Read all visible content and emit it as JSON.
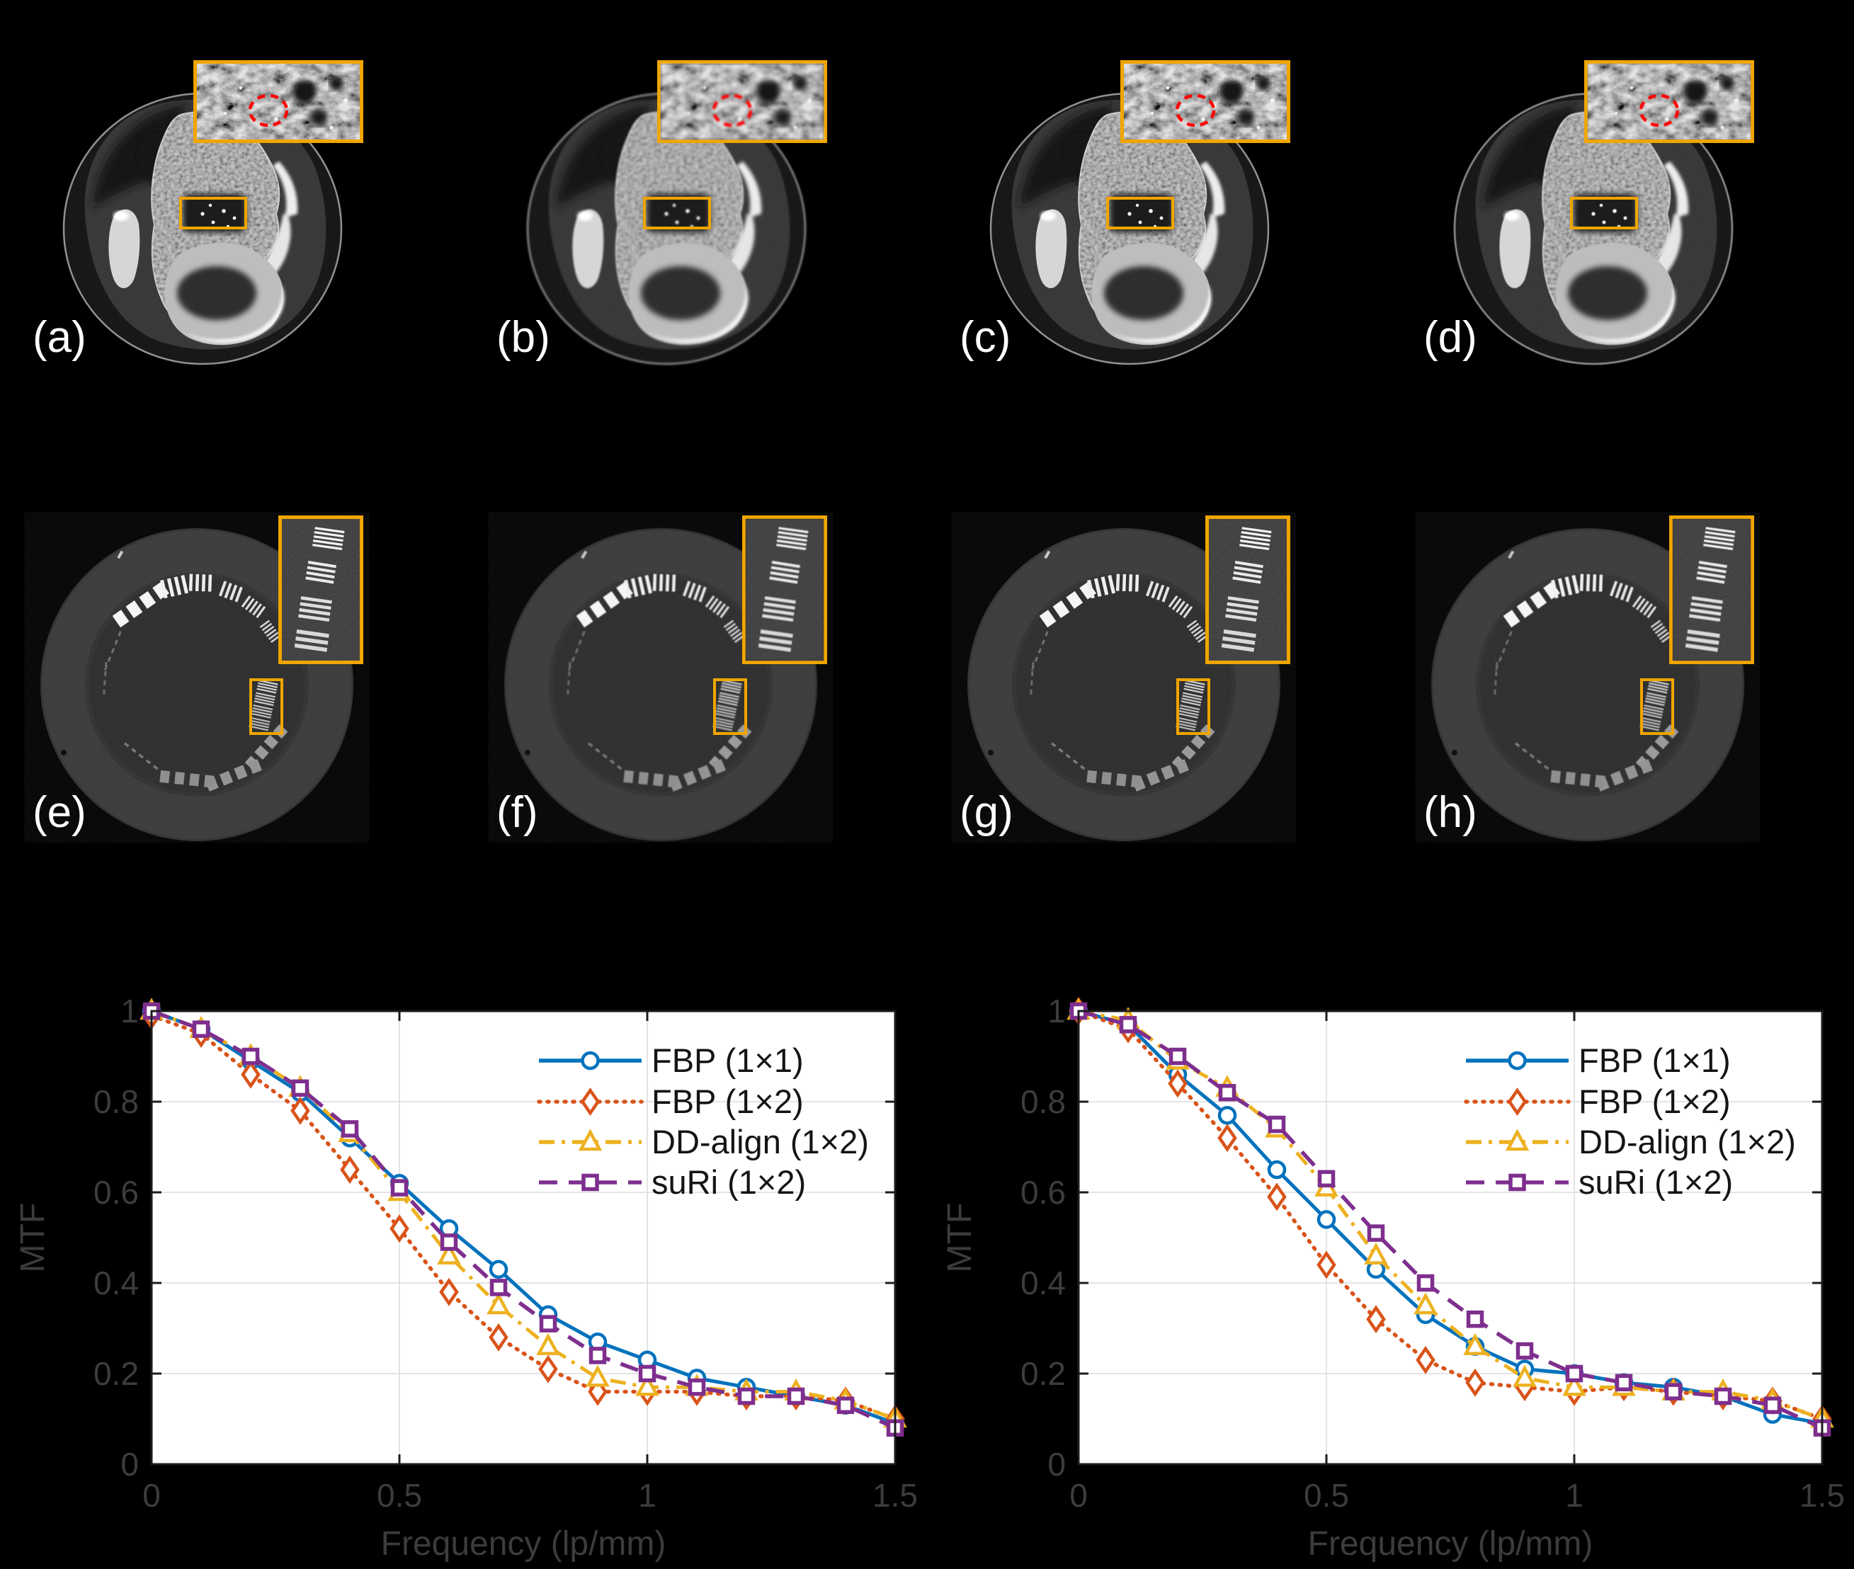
{
  "figure": {
    "background": "#000000",
    "accent_yellow": "#F0A500",
    "annotation_red": "#FF0000",
    "panel_label_color": "#FFFFFF"
  },
  "panels": {
    "row1": [
      {
        "label": "(a)"
      },
      {
        "label": "(b)"
      },
      {
        "label": "(c)"
      },
      {
        "label": "(d)"
      }
    ],
    "row2": [
      {
        "label": "(e)"
      },
      {
        "label": "(f)"
      },
      {
        "label": "(g)"
      },
      {
        "label": "(h)"
      }
    ]
  },
  "chart_data": [
    {
      "type": "line",
      "title": "",
      "xlabel": "Frequency (lp/mm)",
      "ylabel": "MTF",
      "xlim": [
        0,
        1.5
      ],
      "ylim": [
        0,
        1
      ],
      "xticks": [
        0,
        0.5,
        1,
        1.5
      ],
      "xtick_labels": [
        "0",
        "0.5",
        "1",
        "1.5"
      ],
      "yticks": [
        0,
        0.2,
        0.4,
        0.6,
        0.8,
        1
      ],
      "ytick_labels": [
        "0",
        "0.2",
        "0.4",
        "0.6",
        "0.8",
        "1"
      ],
      "grid": true,
      "legend_position": "top-right",
      "x": [
        0,
        0.1,
        0.2,
        0.3,
        0.4,
        0.5,
        0.6,
        0.7,
        0.8,
        0.9,
        1.0,
        1.1,
        1.2,
        1.3,
        1.4,
        1.5
      ],
      "series": [
        {
          "name": "FBP (1×1)",
          "color": "#0072BD",
          "line_style": "solid",
          "marker": "circle",
          "values": [
            1.0,
            0.96,
            0.89,
            0.82,
            0.72,
            0.62,
            0.52,
            0.43,
            0.33,
            0.27,
            0.23,
            0.19,
            0.17,
            0.15,
            0.13,
            0.09
          ]
        },
        {
          "name": "FBP (1×2)",
          "color": "#D95319",
          "line_style": "dotted",
          "marker": "diamond",
          "values": [
            0.99,
            0.95,
            0.86,
            0.78,
            0.65,
            0.52,
            0.38,
            0.28,
            0.21,
            0.16,
            0.16,
            0.16,
            0.15,
            0.15,
            0.14,
            0.1
          ]
        },
        {
          "name": "DD-align (1×2)",
          "color": "#EDB120",
          "line_style": "dashdot",
          "marker": "triangle",
          "values": [
            1.0,
            0.96,
            0.9,
            0.83,
            0.73,
            0.6,
            0.46,
            0.35,
            0.26,
            0.19,
            0.17,
            0.17,
            0.16,
            0.16,
            0.14,
            0.1
          ]
        },
        {
          "name": "suRi (1×2)",
          "color": "#7E2F8E",
          "line_style": "dashed",
          "marker": "square",
          "values": [
            1.0,
            0.96,
            0.9,
            0.83,
            0.74,
            0.61,
            0.49,
            0.39,
            0.31,
            0.24,
            0.2,
            0.17,
            0.15,
            0.15,
            0.13,
            0.08
          ]
        }
      ]
    },
    {
      "type": "line",
      "title": "",
      "xlabel": "Frequency (lp/mm)",
      "ylabel": "MTF",
      "xlim": [
        0,
        1.5
      ],
      "ylim": [
        0,
        1
      ],
      "xticks": [
        0,
        0.5,
        1,
        1.5
      ],
      "xtick_labels": [
        "0",
        "0.5",
        "1",
        "1.5"
      ],
      "yticks": [
        0,
        0.2,
        0.4,
        0.6,
        0.8,
        1
      ],
      "ytick_labels": [
        "0",
        "0.2",
        "0.4",
        "0.6",
        "0.8",
        "1"
      ],
      "grid": true,
      "legend_position": "top-right",
      "x": [
        0,
        0.1,
        0.2,
        0.3,
        0.4,
        0.5,
        0.6,
        0.7,
        0.8,
        0.9,
        1.0,
        1.1,
        1.2,
        1.3,
        1.4,
        1.5
      ],
      "series": [
        {
          "name": "FBP (1×1)",
          "color": "#0072BD",
          "line_style": "solid",
          "marker": "circle",
          "values": [
            1.0,
            0.97,
            0.86,
            0.77,
            0.65,
            0.54,
            0.43,
            0.33,
            0.26,
            0.21,
            0.2,
            0.18,
            0.17,
            0.15,
            0.11,
            0.09
          ]
        },
        {
          "name": "FBP (1×2)",
          "color": "#D95319",
          "line_style": "dotted",
          "marker": "diamond",
          "values": [
            1.0,
            0.96,
            0.84,
            0.72,
            0.59,
            0.44,
            0.32,
            0.23,
            0.18,
            0.17,
            0.16,
            0.17,
            0.16,
            0.15,
            0.14,
            0.1
          ]
        },
        {
          "name": "DD-align (1×2)",
          "color": "#EDB120",
          "line_style": "dashdot",
          "marker": "triangle",
          "values": [
            1.0,
            0.98,
            0.89,
            0.83,
            0.74,
            0.61,
            0.46,
            0.35,
            0.26,
            0.19,
            0.17,
            0.17,
            0.16,
            0.16,
            0.14,
            0.1
          ]
        },
        {
          "name": "suRi (1×2)",
          "color": "#7E2F8E",
          "line_style": "dashed",
          "marker": "square",
          "values": [
            1.0,
            0.97,
            0.9,
            0.82,
            0.75,
            0.63,
            0.51,
            0.4,
            0.32,
            0.25,
            0.2,
            0.18,
            0.16,
            0.15,
            0.13,
            0.08
          ]
        }
      ]
    }
  ]
}
